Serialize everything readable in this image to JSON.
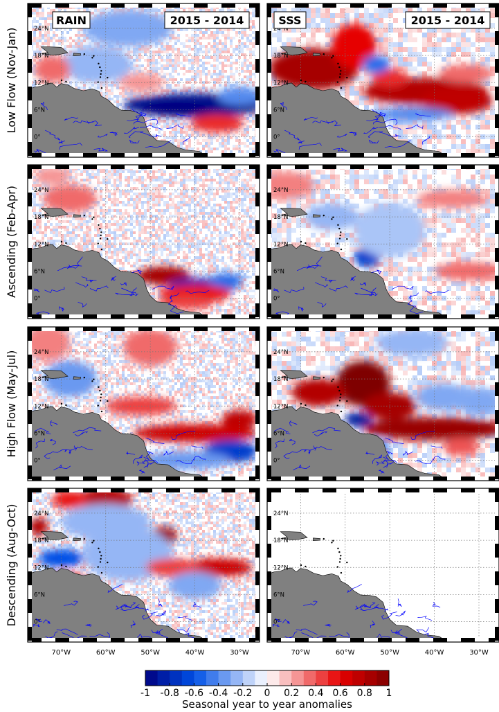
{
  "chart_data": {
    "type": "heatmap",
    "panel_tags": {
      "left": "RAIN",
      "right": "SSS"
    },
    "period_label": "2015 - 2014",
    "rows": [
      {
        "label": "Low Flow (Nov-Jan)"
      },
      {
        "label": "Ascending (Feb-Apr)"
      },
      {
        "label": "High Flow (May-Jul)"
      },
      {
        "label": "Descending (Aug-Oct)"
      }
    ],
    "x_ticks": [
      "70°W",
      "60°W",
      "50°W",
      "40°W",
      "30°W"
    ],
    "y_ticks": [
      "24°N",
      "18°N",
      "12°N",
      "6°N",
      "0°"
    ],
    "colorbar": {
      "range": [
        -1,
        1
      ],
      "tick_labels": [
        "-1",
        "-0.8",
        "-0.6",
        "-0.4",
        "-0.2",
        "0",
        "0.2",
        "0.4",
        "0.6",
        "0.8",
        "1"
      ],
      "label": "Seasonal year to year anomalies",
      "negative_color": "#00007f",
      "neutral_color": "#ffffff",
      "positive_color": "#7f0000"
    },
    "land_color": "#808080",
    "river_color": "#0000ff",
    "anomaly_features": [
      {
        "panel": "RAIN",
        "row": 0,
        "lon": -40,
        "lat": 7,
        "value": -0.9
      },
      {
        "panel": "RAIN",
        "row": 0,
        "lon": -35,
        "lat": 3,
        "value": 0.5
      },
      {
        "panel": "SSS",
        "row": 0,
        "lon": -67,
        "lat": 15,
        "value": 0.8
      },
      {
        "panel": "SSS",
        "row": 0,
        "lon": -40,
        "lat": 9,
        "value": 0.8
      },
      {
        "panel": "RAIN",
        "row": 1,
        "lon": -47,
        "lat": 5,
        "value": 0.8
      },
      {
        "panel": "RAIN",
        "row": 1,
        "lon": -38,
        "lat": 3,
        "value": -0.8
      },
      {
        "panel": "SSS",
        "row": 1,
        "lon": -55,
        "lat": 9,
        "value": -0.6
      },
      {
        "panel": "RAIN",
        "row": 2,
        "lon": -40,
        "lat": 6,
        "value": 0.7
      },
      {
        "panel": "RAIN",
        "row": 2,
        "lon": -32,
        "lat": 2,
        "value": -0.7
      },
      {
        "panel": "SSS",
        "row": 2,
        "lon": -56,
        "lat": 17,
        "value": 1.0
      },
      {
        "panel": "SSS",
        "row": 2,
        "lon": -40,
        "lat": 7,
        "value": 0.9
      },
      {
        "panel": "SSS",
        "row": 2,
        "lon": -57,
        "lat": 9,
        "value": -0.9
      },
      {
        "panel": "RAIN",
        "row": 3,
        "lon": -60,
        "lat": 27,
        "value": 0.8
      },
      {
        "panel": "RAIN",
        "row": 3,
        "lon": -47,
        "lat": 19,
        "value": 0.9
      },
      {
        "panel": "RAIN",
        "row": 3,
        "lon": -70,
        "lat": 14,
        "value": -0.6
      },
      {
        "panel": "RAIN",
        "row": 3,
        "lon": -35,
        "lat": 12,
        "value": 0.7
      }
    ]
  }
}
